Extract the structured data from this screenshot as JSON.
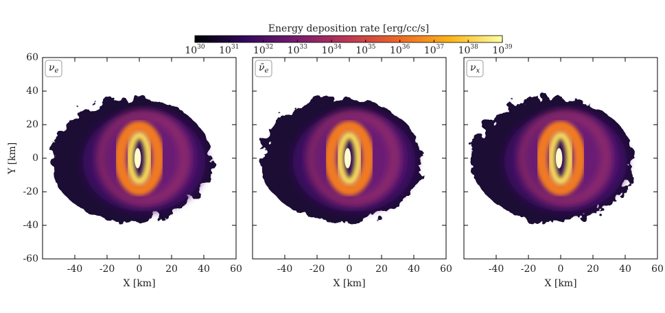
{
  "colorbar": {
    "title": "Energy deposition rate [erg/cc/s]",
    "log": true,
    "lim": [
      1e+30,
      1e+39
    ],
    "colors": [
      "#000004",
      "#320a5e",
      "#781c6d",
      "#bc3754",
      "#ed6925",
      "#fbb61a",
      "#fcffa4"
    ],
    "ticks": [
      {
        "value": 1e+30,
        "label": {
          "base": "10",
          "exponent": "30"
        }
      },
      {
        "value": 1e+31,
        "label": {
          "base": "10",
          "exponent": "31"
        }
      },
      {
        "value": 1e+32,
        "label": {
          "base": "10",
          "exponent": "32"
        }
      },
      {
        "value": 1e+33,
        "label": {
          "base": "10",
          "exponent": "33"
        }
      },
      {
        "value": 1e+34,
        "label": {
          "base": "10",
          "exponent": "34"
        }
      },
      {
        "value": 1e+35,
        "label": {
          "base": "10",
          "exponent": "35"
        }
      },
      {
        "value": 1e+36,
        "label": {
          "base": "10",
          "exponent": "36"
        }
      },
      {
        "value": 1e+37,
        "label": {
          "base": "10",
          "exponent": "37"
        }
      },
      {
        "value": 1e+38,
        "label": {
          "base": "10",
          "exponent": "38"
        }
      },
      {
        "value": 1e+39,
        "label": {
          "base": "10",
          "exponent": "39"
        }
      }
    ]
  },
  "chart_data": [
    {
      "type": "heatmap",
      "label": {
        "base": "ν",
        "sub": "e"
      },
      "xlabel": "X [km]",
      "ylabel": "Y [km]",
      "xlim": [
        -60,
        60
      ],
      "ylim": [
        -60,
        60
      ],
      "xticks": [
        -40,
        -20,
        0,
        20,
        40,
        60
      ],
      "yticks": [
        -60,
        -40,
        -20,
        0,
        20,
        40,
        60
      ],
      "show_yticklabels": true
    },
    {
      "type": "heatmap",
      "label": {
        "base": "ν̄",
        "sub": "e"
      },
      "xlabel": "X [km]",
      "xlim": [
        -60,
        60
      ],
      "ylim": [
        -60,
        60
      ],
      "xticks": [
        -40,
        -20,
        0,
        20,
        40,
        60
      ],
      "yticks": [
        -60,
        -40,
        -20,
        0,
        20,
        40,
        60
      ],
      "show_yticklabels": false
    },
    {
      "type": "heatmap",
      "label": {
        "base": "ν",
        "sub": "x"
      },
      "xlabel": "X [km]",
      "xlim": [
        -60,
        60
      ],
      "ylim": [
        -60,
        60
      ],
      "xticks": [
        -40,
        -20,
        0,
        20,
        40,
        60
      ],
      "yticks": [
        -60,
        -40,
        -20,
        0,
        20,
        40,
        60
      ],
      "show_yticklabels": false
    }
  ]
}
